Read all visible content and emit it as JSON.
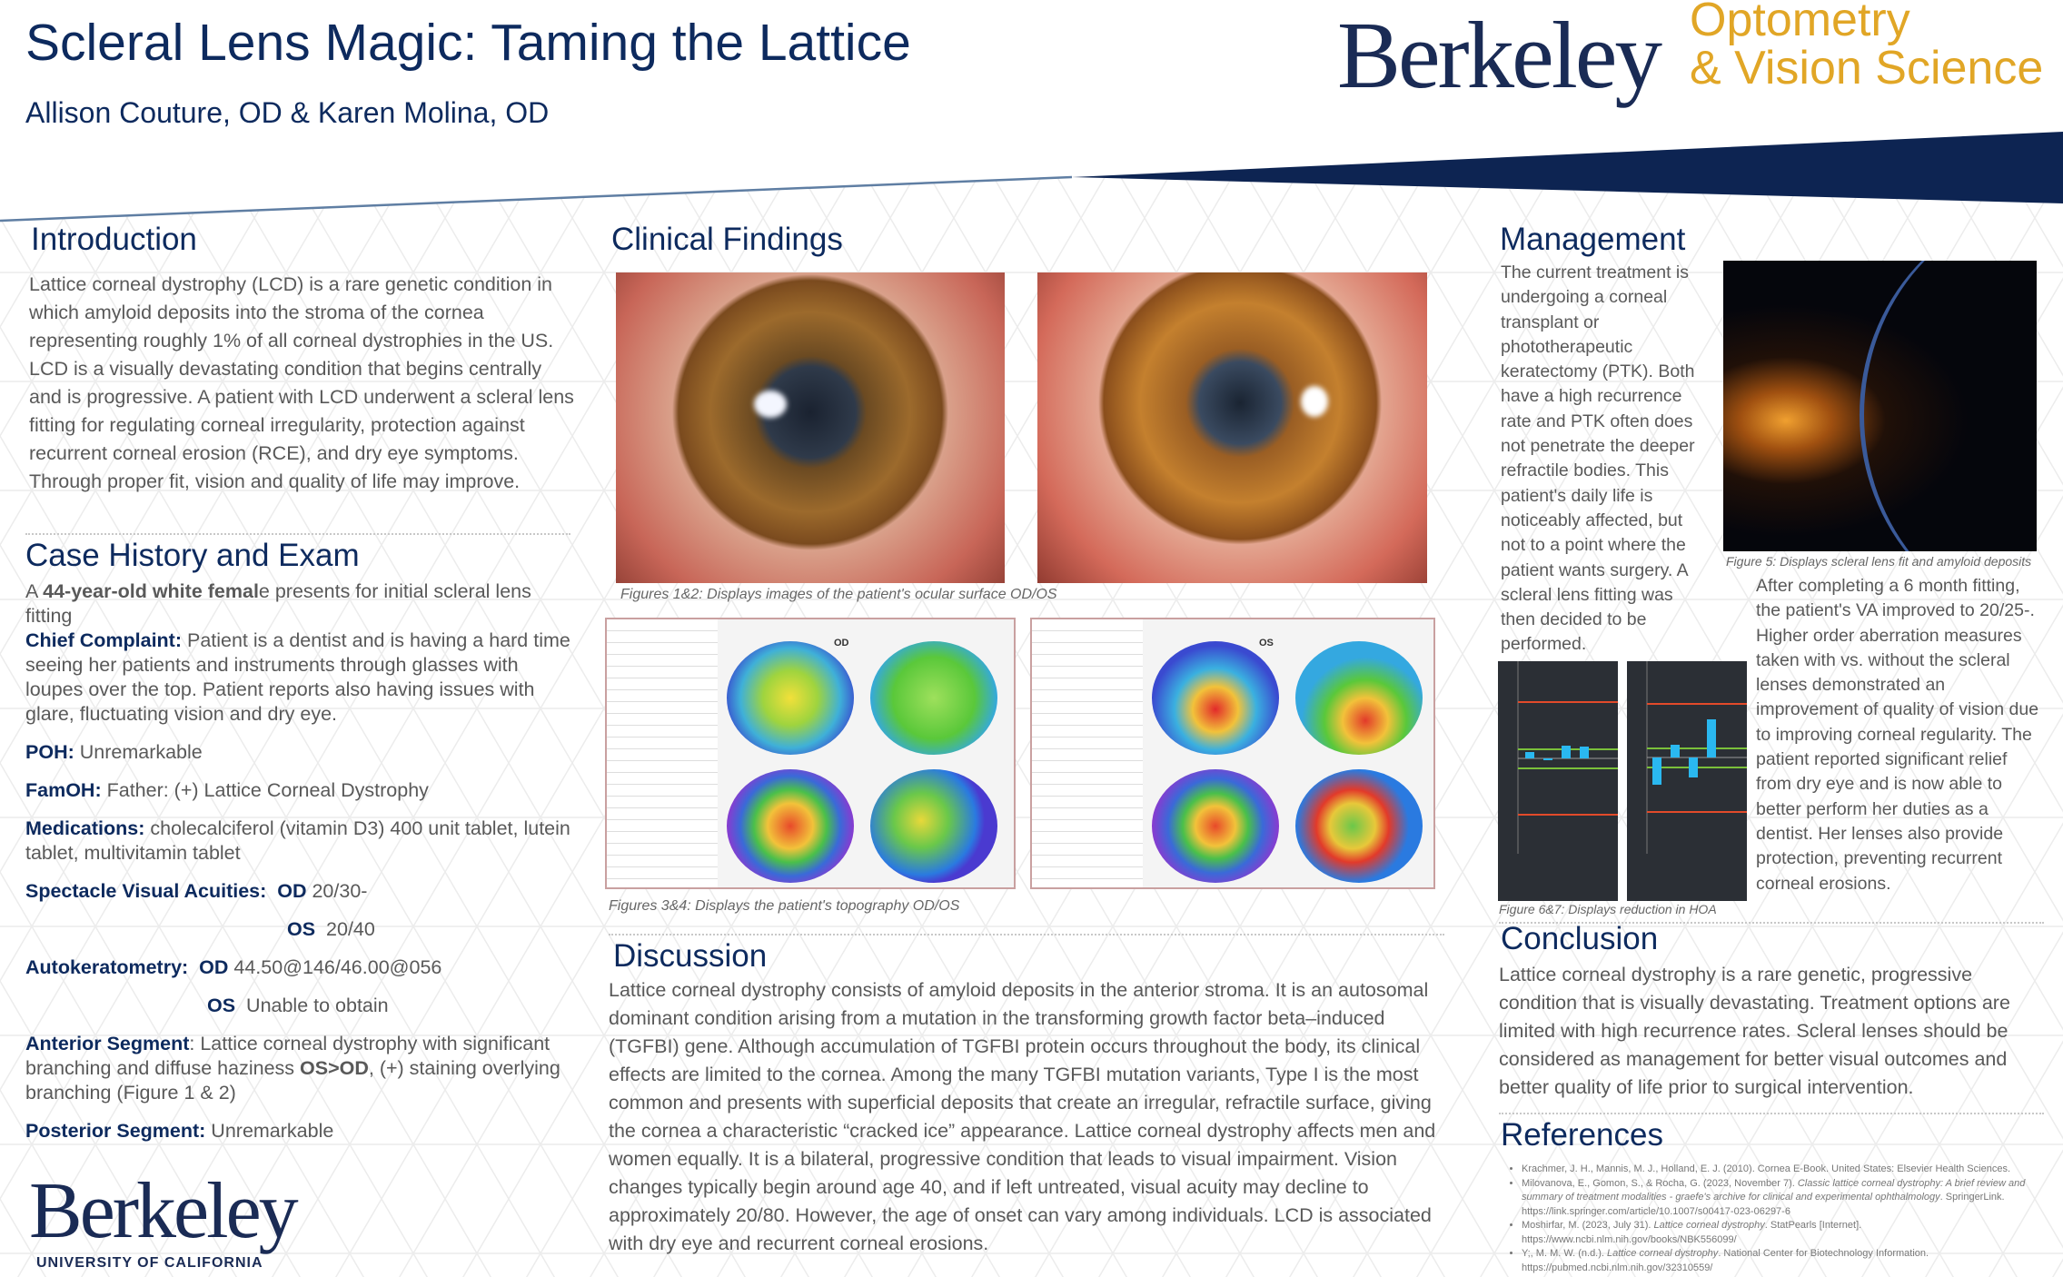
{
  "header": {
    "title": "Scleral Lens Magic: Taming the Lattice",
    "authors": "Allison Couture, OD & Karen Molina, OD",
    "logo": {
      "wordmark": "Berkeley",
      "line1": "Optometry",
      "line2": "& Vision Science"
    },
    "colors": {
      "navy": "#0d2a5e",
      "gold": "#e1a626"
    }
  },
  "introduction": {
    "heading": "Introduction",
    "text": "Lattice corneal dystrophy (LCD) is a rare genetic condition in which amyloid deposits into the stroma of the cornea representing roughly 1% of all corneal dystrophies in the US. LCD is a visually devastating condition that begins centrally and is progressive. A patient with LCD underwent a scleral lens fitting for regulating corneal irregularity, protection against recurrent corneal erosion (RCE), and dry eye symptoms. Through proper fit, vision and quality of life may improve."
  },
  "case": {
    "heading": "Case History and Exam",
    "intro_pre": "A ",
    "intro_bold": "44-year-old white femal",
    "intro_post": "e presents for initial scleral lens fitting",
    "cc_label": "Chief Complaint:",
    "cc": " Patient is a dentist and is having a hard time seeing her patients and instruments through glasses with loupes over the top. Patient reports also having issues with glare, fluctuating vision and dry eye.",
    "poh_label": "POH:",
    "poh": " Unremarkable",
    "famoh_label": "FamOH:",
    "famoh": " Father: (+) Lattice Corneal Dystrophy",
    "meds_label": "Medications:",
    "meds": " cholecalciferol (vitamin D3) 400 unit tablet, lutein tablet, multivitamin tablet",
    "sva_label": "Spectacle Visual Acuities:",
    "sva_od_label": "OD",
    "sva_od": " 20/30-",
    "sva_os_label": "OS",
    "sva_os": " 20/40",
    "ak_label": "Autokeratometry:",
    "ak_od_label": "OD",
    "ak_od": " 44.50@146/46.00@056",
    "ak_os_label": "OS",
    "ak_os": " Unable to obtain",
    "as_label": "Anterior Segment",
    "as_pre": ":  Lattice corneal dystrophy with significant branching and diffuse haziness ",
    "as_bold": "OS>OD",
    ", ": "",
    "as_post": ", (+) staining overlying branching (Figure 1 & 2)",
    "ps_label": "Posterior Segment:",
    "ps": " Unremarkable"
  },
  "clinical": {
    "heading": "Clinical Findings",
    "caption12": "Figures 1&2: Displays images of the patient's ocular surface OD/OS",
    "caption34": "Figures 3&4: Displays the patient's topography OD/OS",
    "topo_labels": [
      "OD",
      "OS"
    ]
  },
  "discussion": {
    "heading": "Discussion",
    "text": "Lattice corneal dystrophy consists of amyloid deposits in the anterior stroma. It is an autosomal dominant condition arising from a mutation in the transforming growth factor beta–induced (TGFBI) gene. Although accumulation of TGFBI protein occurs throughout the body, its clinical effects are limited to the cornea. Among the many TGFBI mutation variants, Type I is the most common and presents with superficial deposits that create an irregular, refractile surface, giving the cornea a characteristic “cracked ice” appearance. Lattice corneal dystrophy affects men and women equally. It is a bilateral, progressive condition that leads to visual impairment. Vision changes typically begin around age 40, and if left untreated, visual acuity may decline to approximately 20/80. However, the age of onset can vary among individuals. LCD is associated with dry eye and recurrent corneal erosions."
  },
  "management": {
    "heading": "Management",
    "text1": "The current treatment is undergoing a corneal transplant or phototherapeutic keratectomy (PTK). Both have a high recurrence rate and PTK often does not penetrate the deeper refractile bodies. This patient's daily life is noticeably affected, but not to a point where the patient wants surgery. A scleral lens fitting was then decided to be performed.",
    "caption5": "Figure 5: Displays scleral lens fit and amyloid deposits",
    "text2": "After completing a 6 month fitting, the patient's VA improved to 20/25-. Higher order aberration measures taken with vs. without the scleral lenses demonstrated an improvement of quality of vision due to improving corneal regularity. The patient reported significant relief from dry eye and is now able to better perform her duties as a dentist. Her lenses also provide protection, preventing recurrent corneal erosions.",
    "caption67": "Figure 6&7: Displays reduction in HOA"
  },
  "conclusion": {
    "heading": "Conclusion",
    "text": "Lattice corneal dystrophy is a rare genetic, progressive condition that is visually devastating. Treatment options are limited with high recurrence rates. Scleral lenses should be considered as management for better visual outcomes and better quality of life prior to surgical intervention."
  },
  "references": {
    "heading": "References",
    "items": [
      {
        "pre": "Krachmer, J. H., Mannis, M. J., Holland, E. J. (2010). Cornea E-Book. United States: Elsevier Health Sciences.",
        "ital": "",
        "post": ""
      },
      {
        "pre": "Milovanova, E., Gomon, S., & Rocha, G. (2023, November 7). ",
        "ital": "Classic lattice corneal dystrophy: A brief review and summary of treatment modalities - graefe's archive for clinical and experimental ophthalmology",
        "post": ". SpringerLink. https://link.springer.com/article/10.1007/s00417-023-06297-6"
      },
      {
        "pre": "Moshirfar, M. (2023, July 31). ",
        "ital": "Lattice corneal dystrophy",
        "post": ". StatPearls [Internet]. https://www.ncbi.nlm.nih.gov/books/NBK556099/"
      },
      {
        "pre": "Y;, M. M. W. (n.d.). ",
        "ital": "Lattice corneal dystrophy",
        "post": ". National Center for Biotechnology Information. https://pubmed.ncbi.nlm.nih.gov/32310559/"
      }
    ]
  },
  "footer": {
    "wordmark": "Berkeley",
    "sub": "UNIVERSITY OF CALIFORNIA"
  }
}
